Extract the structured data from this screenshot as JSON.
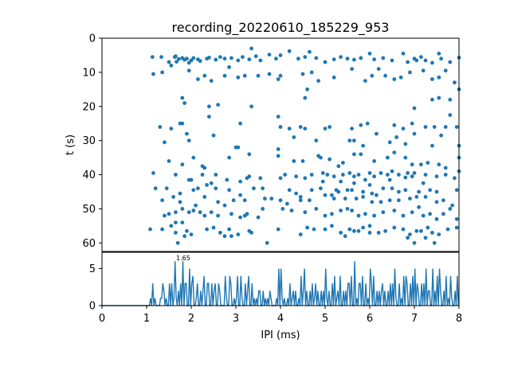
{
  "chart_data": [
    {
      "type": "scatter",
      "title": "recording_20220610_185229_953",
      "xlabel": "",
      "ylabel": "t (s)",
      "xlim": [
        0,
        8
      ],
      "ylim": [
        62.5,
        0
      ],
      "y_inverted": true,
      "yticks": [
        0,
        10,
        20,
        30,
        40,
        50,
        60
      ],
      "color": "#1f77b4",
      "points": [
        [
          1.13,
          5.5
        ],
        [
          1.33,
          5.5
        ],
        [
          1.5,
          7.0
        ],
        [
          1.63,
          5.5
        ],
        [
          1.65,
          5.3
        ],
        [
          1.67,
          6.9
        ],
        [
          1.72,
          6.1
        ],
        [
          1.8,
          5.8
        ],
        [
          1.85,
          6.3
        ],
        [
          1.9,
          6.0
        ],
        [
          1.95,
          7.2
        ],
        [
          2.0,
          6.5
        ],
        [
          2.05,
          5.8
        ],
        [
          2.15,
          6.2
        ],
        [
          2.2,
          6.7
        ],
        [
          2.35,
          6.0
        ],
        [
          2.4,
          5.7
        ],
        [
          2.55,
          6.3
        ],
        [
          2.65,
          5.5
        ],
        [
          2.75,
          6.0
        ],
        [
          2.9,
          5.8
        ],
        [
          3.05,
          6.5
        ],
        [
          3.15,
          5.5
        ],
        [
          3.3,
          6.2
        ],
        [
          3.35,
          3.0
        ],
        [
          3.45,
          5.3
        ],
        [
          3.55,
          6.5
        ],
        [
          3.75,
          4.8
        ],
        [
          3.9,
          6.0
        ],
        [
          4.0,
          5.0
        ],
        [
          4.2,
          3.8
        ],
        [
          4.4,
          6.0
        ],
        [
          4.55,
          5.5
        ],
        [
          4.65,
          4.0
        ],
        [
          4.8,
          5.8
        ],
        [
          5.0,
          7.0
        ],
        [
          5.2,
          6.2
        ],
        [
          5.35,
          5.5
        ],
        [
          5.5,
          6.0
        ],
        [
          5.65,
          6.3
        ],
        [
          5.8,
          5.8
        ],
        [
          6.0,
          4.5
        ],
        [
          6.1,
          6.2
        ],
        [
          6.3,
          5.8
        ],
        [
          6.5,
          6.5
        ],
        [
          6.75,
          4.5
        ],
        [
          6.85,
          7.0
        ],
        [
          7.0,
          6.0
        ],
        [
          7.15,
          5.5
        ],
        [
          7.25,
          6.5
        ],
        [
          7.4,
          7.2
        ],
        [
          7.6,
          6.0
        ],
        [
          7.8,
          7.0
        ],
        [
          8.0,
          5.7
        ],
        [
          7.55,
          4.5
        ],
        [
          7.05,
          6.5
        ],
        [
          1.15,
          10.5
        ],
        [
          1.35,
          10.0
        ],
        [
          1.55,
          8.0
        ],
        [
          1.95,
          9.5
        ],
        [
          2.15,
          12.0
        ],
        [
          2.3,
          11.0
        ],
        [
          2.45,
          12.5
        ],
        [
          2.75,
          11.0
        ],
        [
          2.85,
          8.5
        ],
        [
          3.05,
          11.5
        ],
        [
          3.2,
          11.0
        ],
        [
          3.5,
          11.0
        ],
        [
          3.75,
          10.5
        ],
        [
          3.95,
          12.0
        ],
        [
          4.0,
          11.0
        ],
        [
          4.5,
          10.5
        ],
        [
          4.7,
          10.0
        ],
        [
          4.85,
          12.5
        ],
        [
          5.2,
          11.5
        ],
        [
          5.6,
          9.0
        ],
        [
          5.9,
          12.5
        ],
        [
          6.05,
          11.0
        ],
        [
          6.2,
          9.0
        ],
        [
          6.35,
          11.0
        ],
        [
          6.55,
          12.0
        ],
        [
          6.7,
          11.5
        ],
        [
          6.9,
          10.0
        ],
        [
          7.2,
          9.5
        ],
        [
          7.4,
          12.0
        ],
        [
          7.55,
          11.5
        ],
        [
          7.7,
          9.5
        ],
        [
          7.9,
          13.0
        ],
        [
          8.0,
          15.0
        ],
        [
          4.6,
          15.0
        ],
        [
          4.55,
          17.5
        ],
        [
          1.8,
          17.5
        ],
        [
          1.85,
          19.0
        ],
        [
          2.4,
          20.0
        ],
        [
          2.6,
          19.5
        ],
        [
          3.35,
          20.0
        ],
        [
          7.0,
          20.5
        ],
        [
          7.4,
          18.0
        ],
        [
          7.55,
          17.5
        ],
        [
          7.8,
          18.0
        ],
        [
          7.8,
          22.5
        ],
        [
          1.3,
          26.0
        ],
        [
          1.55,
          26.5
        ],
        [
          1.75,
          25.0
        ],
        [
          1.8,
          25.0
        ],
        [
          1.9,
          28.0
        ],
        [
          2.4,
          23.0
        ],
        [
          3.1,
          25.0
        ],
        [
          3.95,
          23.0
        ],
        [
          4.0,
          26.0
        ],
        [
          4.2,
          26.5
        ],
        [
          4.45,
          26.0
        ],
        [
          4.55,
          26.5
        ],
        [
          5.0,
          26.5
        ],
        [
          5.1,
          26.0
        ],
        [
          5.6,
          26.5
        ],
        [
          5.8,
          25.5
        ],
        [
          5.95,
          25.0
        ],
        [
          6.55,
          25.5
        ],
        [
          6.75,
          26.5
        ],
        [
          6.95,
          25.0
        ],
        [
          7.25,
          26.0
        ],
        [
          7.45,
          26.0
        ],
        [
          7.6,
          28.5
        ],
        [
          7.7,
          26.0
        ],
        [
          7.95,
          26.0
        ],
        [
          6.15,
          28.0
        ],
        [
          1.4,
          30.5
        ],
        [
          1.95,
          30.0
        ],
        [
          2.5,
          28.5
        ],
        [
          3.0,
          32.0
        ],
        [
          3.95,
          32.5
        ],
        [
          4.3,
          29.0
        ],
        [
          4.8,
          30.0
        ],
        [
          5.55,
          30.0
        ],
        [
          5.65,
          30.0
        ],
        [
          5.85,
          31.5
        ],
        [
          6.45,
          30.5
        ],
        [
          6.6,
          29.0
        ],
        [
          6.8,
          31.0
        ],
        [
          7.0,
          28.0
        ],
        [
          7.4,
          31.5
        ],
        [
          8.0,
          31.5
        ],
        [
          3.05,
          32.0
        ],
        [
          1.5,
          36.0
        ],
        [
          1.8,
          37.0
        ],
        [
          2.05,
          35.0
        ],
        [
          2.25,
          37.5
        ],
        [
          2.3,
          38.0
        ],
        [
          2.85,
          35.0
        ],
        [
          3.3,
          34.0
        ],
        [
          3.95,
          34.5
        ],
        [
          4.3,
          36.0
        ],
        [
          4.5,
          36.0
        ],
        [
          4.9,
          35.0
        ],
        [
          5.1,
          35.5
        ],
        [
          5.4,
          36.5
        ],
        [
          5.65,
          34.0
        ],
        [
          5.8,
          34.0
        ],
        [
          6.1,
          36.0
        ],
        [
          6.4,
          35.0
        ],
        [
          6.55,
          33.5
        ],
        [
          6.8,
          35.0
        ],
        [
          6.95,
          37.0
        ],
        [
          7.15,
          37.0
        ],
        [
          7.3,
          36.5
        ],
        [
          7.55,
          37.0
        ],
        [
          7.7,
          38.0
        ],
        [
          8.0,
          35.0
        ],
        [
          4.85,
          34.5
        ],
        [
          5.3,
          37.5
        ],
        [
          1.15,
          39.5
        ],
        [
          1.65,
          40.0
        ],
        [
          1.95,
          41.5
        ],
        [
          2.0,
          41.5
        ],
        [
          2.25,
          40.0
        ],
        [
          2.35,
          43.0
        ],
        [
          2.55,
          40.0
        ],
        [
          2.8,
          41.5
        ],
        [
          3.25,
          41.0
        ],
        [
          3.3,
          40.5
        ],
        [
          3.55,
          41.0
        ],
        [
          4.0,
          41.0
        ],
        [
          4.1,
          40.0
        ],
        [
          4.35,
          40.5
        ],
        [
          4.55,
          41.0
        ],
        [
          4.7,
          40.0
        ],
        [
          4.95,
          39.5
        ],
        [
          5.05,
          40.0
        ],
        [
          5.2,
          40.5
        ],
        [
          5.4,
          40.0
        ],
        [
          5.55,
          39.5
        ],
        [
          5.65,
          40.5
        ],
        [
          5.75,
          40.0
        ],
        [
          5.9,
          41.5
        ],
        [
          6.0,
          39.5
        ],
        [
          6.1,
          40.5
        ],
        [
          6.25,
          39.5
        ],
        [
          6.4,
          40.0
        ],
        [
          6.5,
          39.0
        ],
        [
          6.65,
          40.0
        ],
        [
          6.85,
          39.5
        ],
        [
          6.95,
          40.5
        ],
        [
          7.0,
          39.5
        ],
        [
          7.25,
          40.0
        ],
        [
          7.5,
          40.5
        ],
        [
          7.7,
          40.0
        ],
        [
          7.9,
          41.0
        ],
        [
          8.0,
          39.0
        ],
        [
          6.8,
          40.8
        ],
        [
          3.1,
          42.0
        ],
        [
          1.2,
          44.0
        ],
        [
          1.45,
          44.0
        ],
        [
          1.75,
          45.5
        ],
        [
          2.05,
          44.5
        ],
        [
          2.15,
          44.0
        ],
        [
          2.45,
          42.5
        ],
        [
          2.55,
          44.0
        ],
        [
          2.85,
          44.5
        ],
        [
          3.1,
          46.0
        ],
        [
          3.4,
          44.0
        ],
        [
          3.6,
          44.0
        ],
        [
          4.2,
          44.5
        ],
        [
          4.35,
          45.5
        ],
        [
          4.7,
          44.5
        ],
        [
          4.9,
          44.0
        ],
        [
          5.15,
          46.0
        ],
        [
          5.25,
          44.5
        ],
        [
          5.3,
          45.0
        ],
        [
          5.5,
          44.5
        ],
        [
          5.6,
          44.5
        ],
        [
          5.85,
          45.0
        ],
        [
          6.05,
          45.5
        ],
        [
          6.15,
          46.0
        ],
        [
          6.3,
          44.0
        ],
        [
          6.5,
          44.0
        ],
        [
          6.65,
          45.0
        ],
        [
          6.8,
          44.5
        ],
        [
          7.1,
          45.0
        ],
        [
          7.35,
          44.5
        ],
        [
          7.5,
          45.0
        ],
        [
          7.95,
          44.5
        ],
        [
          6.0,
          43.0
        ],
        [
          5.35,
          42.0
        ],
        [
          4.95,
          42.0
        ],
        [
          5.65,
          42.5
        ],
        [
          6.45,
          41.5
        ],
        [
          7.2,
          42.5
        ],
        [
          1.35,
          47.5
        ],
        [
          1.6,
          46.5
        ],
        [
          1.75,
          48.0
        ],
        [
          2.1,
          49.0
        ],
        [
          2.3,
          46.5
        ],
        [
          2.6,
          48.0
        ],
        [
          2.95,
          47.5
        ],
        [
          3.2,
          47.5
        ],
        [
          3.65,
          47.0
        ],
        [
          3.8,
          47.0
        ],
        [
          4.0,
          47.5
        ],
        [
          4.15,
          48.5
        ],
        [
          4.45,
          46.5
        ],
        [
          4.65,
          47.5
        ],
        [
          5.0,
          46.0
        ],
        [
          5.2,
          47.0
        ],
        [
          5.45,
          47.0
        ],
        [
          5.7,
          47.0
        ],
        [
          5.85,
          46.5
        ],
        [
          6.05,
          48.0
        ],
        [
          6.25,
          48.0
        ],
        [
          6.45,
          47.5
        ],
        [
          6.65,
          47.5
        ],
        [
          6.9,
          47.0
        ],
        [
          7.05,
          46.5
        ],
        [
          7.25,
          46.5
        ],
        [
          7.5,
          48.0
        ],
        [
          7.65,
          47.5
        ],
        [
          7.85,
          49.0
        ],
        [
          4.45,
          47.5
        ],
        [
          1.4,
          52.0
        ],
        [
          1.5,
          51.5
        ],
        [
          1.65,
          51.0
        ],
        [
          1.8,
          50.0
        ],
        [
          1.95,
          51.0
        ],
        [
          2.05,
          50.5
        ],
        [
          2.2,
          51.0
        ],
        [
          2.3,
          52.0
        ],
        [
          2.45,
          51.0
        ],
        [
          2.6,
          52.0
        ],
        [
          2.75,
          49.0
        ],
        [
          2.9,
          51.5
        ],
        [
          3.1,
          52.5
        ],
        [
          3.2,
          52.0
        ],
        [
          3.5,
          52.5
        ],
        [
          3.6,
          50.0
        ],
        [
          4.05,
          50.0
        ],
        [
          4.25,
          50.5
        ],
        [
          4.55,
          51.0
        ],
        [
          4.8,
          50.0
        ],
        [
          5.0,
          52.0
        ],
        [
          5.15,
          51.5
        ],
        [
          5.35,
          50.5
        ],
        [
          5.5,
          50.0
        ],
        [
          5.6,
          50.5
        ],
        [
          5.75,
          52.0
        ],
        [
          5.9,
          51.5
        ],
        [
          6.1,
          52.0
        ],
        [
          6.3,
          51.0
        ],
        [
          6.55,
          50.5
        ],
        [
          6.75,
          52.0
        ],
        [
          6.95,
          51.0
        ],
        [
          7.1,
          49.5
        ],
        [
          7.2,
          52.0
        ],
        [
          7.35,
          51.5
        ],
        [
          7.5,
          53.0
        ],
        [
          7.65,
          51.5
        ],
        [
          7.8,
          50.0
        ],
        [
          7.95,
          53.0
        ],
        [
          3.25,
          51.5
        ],
        [
          1.08,
          56.0
        ],
        [
          1.35,
          56.0
        ],
        [
          1.55,
          55.0
        ],
        [
          1.65,
          54.0
        ],
        [
          1.8,
          54.0
        ],
        [
          1.9,
          56.5
        ],
        [
          2.0,
          57.5
        ],
        [
          2.35,
          56.0
        ],
        [
          2.5,
          55.5
        ],
        [
          2.65,
          57.0
        ],
        [
          2.85,
          56.0
        ],
        [
          2.9,
          58.0
        ],
        [
          3.05,
          57.5
        ],
        [
          3.3,
          56.5
        ],
        [
          3.35,
          57.0
        ],
        [
          3.95,
          56.0
        ],
        [
          4.45,
          57.5
        ],
        [
          4.75,
          56.0
        ],
        [
          5.0,
          56.0
        ],
        [
          5.15,
          55.0
        ],
        [
          5.35,
          57.0
        ],
        [
          5.55,
          56.0
        ],
        [
          5.65,
          56.5
        ],
        [
          5.75,
          56.5
        ],
        [
          5.85,
          55.5
        ],
        [
          6.0,
          57.0
        ],
        [
          6.2,
          57.0
        ],
        [
          6.35,
          56.5
        ],
        [
          6.55,
          55.5
        ],
        [
          6.75,
          56.0
        ],
        [
          6.9,
          57.5
        ],
        [
          7.05,
          56.5
        ],
        [
          7.15,
          56.5
        ],
        [
          7.4,
          57.0
        ],
        [
          7.55,
          57.5
        ],
        [
          7.75,
          56.0
        ],
        [
          7.95,
          55.5
        ],
        [
          5.45,
          58.0
        ],
        [
          6.0,
          55.0
        ],
        [
          7.3,
          55.5
        ],
        [
          1.65,
          57.0
        ],
        [
          1.85,
          58.0
        ],
        [
          2.75,
          58.0
        ],
        [
          3.7,
          60.0
        ],
        [
          1.7,
          60.0
        ],
        [
          4.6,
          55.5
        ],
        [
          7.0,
          60.0
        ],
        [
          7.45,
          60.0
        ],
        [
          6.85,
          58.5
        ],
        [
          7.25,
          58.5
        ]
      ]
    },
    {
      "type": "area",
      "title": "",
      "xlabel": "IPI (ms)",
      "ylabel": "",
      "xlim": [
        0,
        8
      ],
      "ylim": [
        0,
        7.2
      ],
      "xticks": [
        0,
        1,
        2,
        3,
        4,
        5,
        6,
        7,
        8
      ],
      "yticks": [
        0,
        5
      ],
      "color": "#1f77b4",
      "peak_label": "1.65",
      "peak_x": 1.65,
      "peak_y": 6
    }
  ]
}
